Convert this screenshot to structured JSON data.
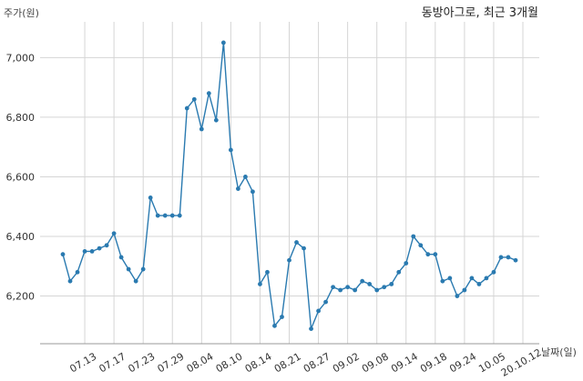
{
  "chart_data": {
    "type": "line",
    "title": "동방아그로, 최근 3개월",
    "ylabel": "주가(원)",
    "xlabel": "날짜(일)",
    "ylim": [
      6040,
      7120
    ],
    "yticks": [
      6200,
      6400,
      6600,
      6800,
      7000
    ],
    "ytick_labels": [
      "6,200",
      "6,400",
      "6,600",
      "6,800",
      "7,000"
    ],
    "xtick_labels": [
      "07.13",
      "07.17",
      "07.23",
      "07.29",
      "08.04",
      "08.10",
      "08.14",
      "08.21",
      "08.27",
      "09.02",
      "09.08",
      "09.14",
      "09.18",
      "09.24",
      "10.05",
      "20.10.12"
    ],
    "xtick_positions": [
      3,
      7,
      11,
      15,
      19,
      23,
      27,
      31,
      35,
      39,
      43,
      47,
      51,
      55,
      59,
      63
    ],
    "grid": true,
    "color": "#2a7ab0",
    "series": [
      {
        "values": [
          6340,
          6250,
          6280,
          6350,
          6350,
          6360,
          6370,
          6410,
          6330,
          6290,
          6250,
          6290,
          6530,
          6470,
          6470,
          6470,
          6470,
          6830,
          6860,
          6760,
          6880,
          6790,
          7050,
          6690,
          6560,
          6600,
          6550,
          6240,
          6280,
          6100,
          6130,
          6320,
          6380,
          6360,
          6090,
          6150,
          6180,
          6230,
          6220,
          6230,
          6220,
          6250,
          6240,
          6220,
          6230,
          6240,
          6280,
          6310,
          6400,
          6370,
          6340,
          6340,
          6250,
          6260,
          6200,
          6220,
          6260,
          6240,
          6260,
          6280,
          6330,
          6330,
          6320
        ]
      }
    ]
  }
}
